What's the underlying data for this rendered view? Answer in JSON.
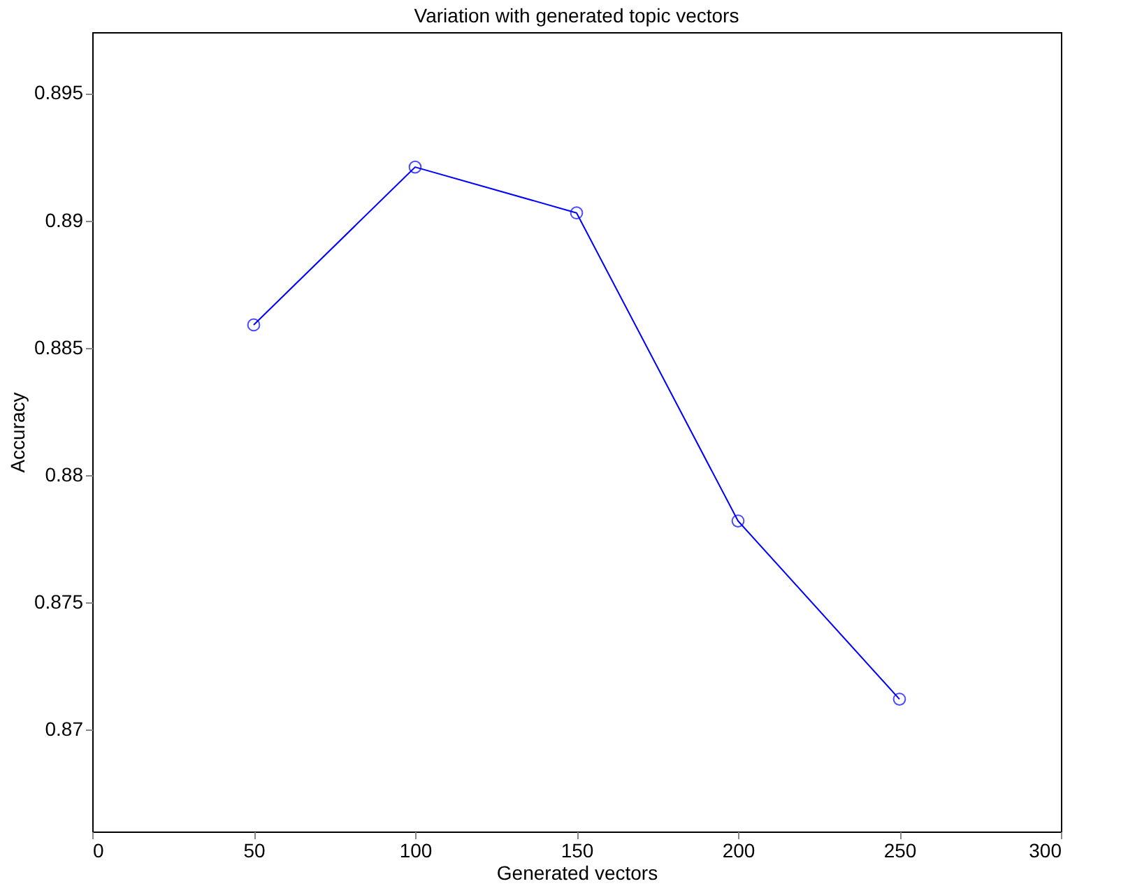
{
  "chart_data": {
    "type": "line",
    "title": "Variation with generated topic vectors",
    "xlabel": "Generated vectors",
    "ylabel": "Accuracy",
    "x": [
      50,
      100,
      150,
      200,
      250
    ],
    "series": [
      {
        "color": "#0000ff",
        "values": [
          0.8859,
          0.8921,
          0.8903,
          0.8782,
          0.8712
        ]
      }
    ],
    "xlim": [
      0,
      300
    ],
    "xticks": [
      0,
      50,
      100,
      150,
      200,
      250,
      300
    ],
    "ylim": [
      0.866,
      0.8974
    ],
    "yticks": [
      0.87,
      0.875,
      0.88,
      0.885,
      0.89,
      0.895
    ],
    "marker": "circle",
    "line_style": "solid",
    "grid": false,
    "legend": false
  }
}
